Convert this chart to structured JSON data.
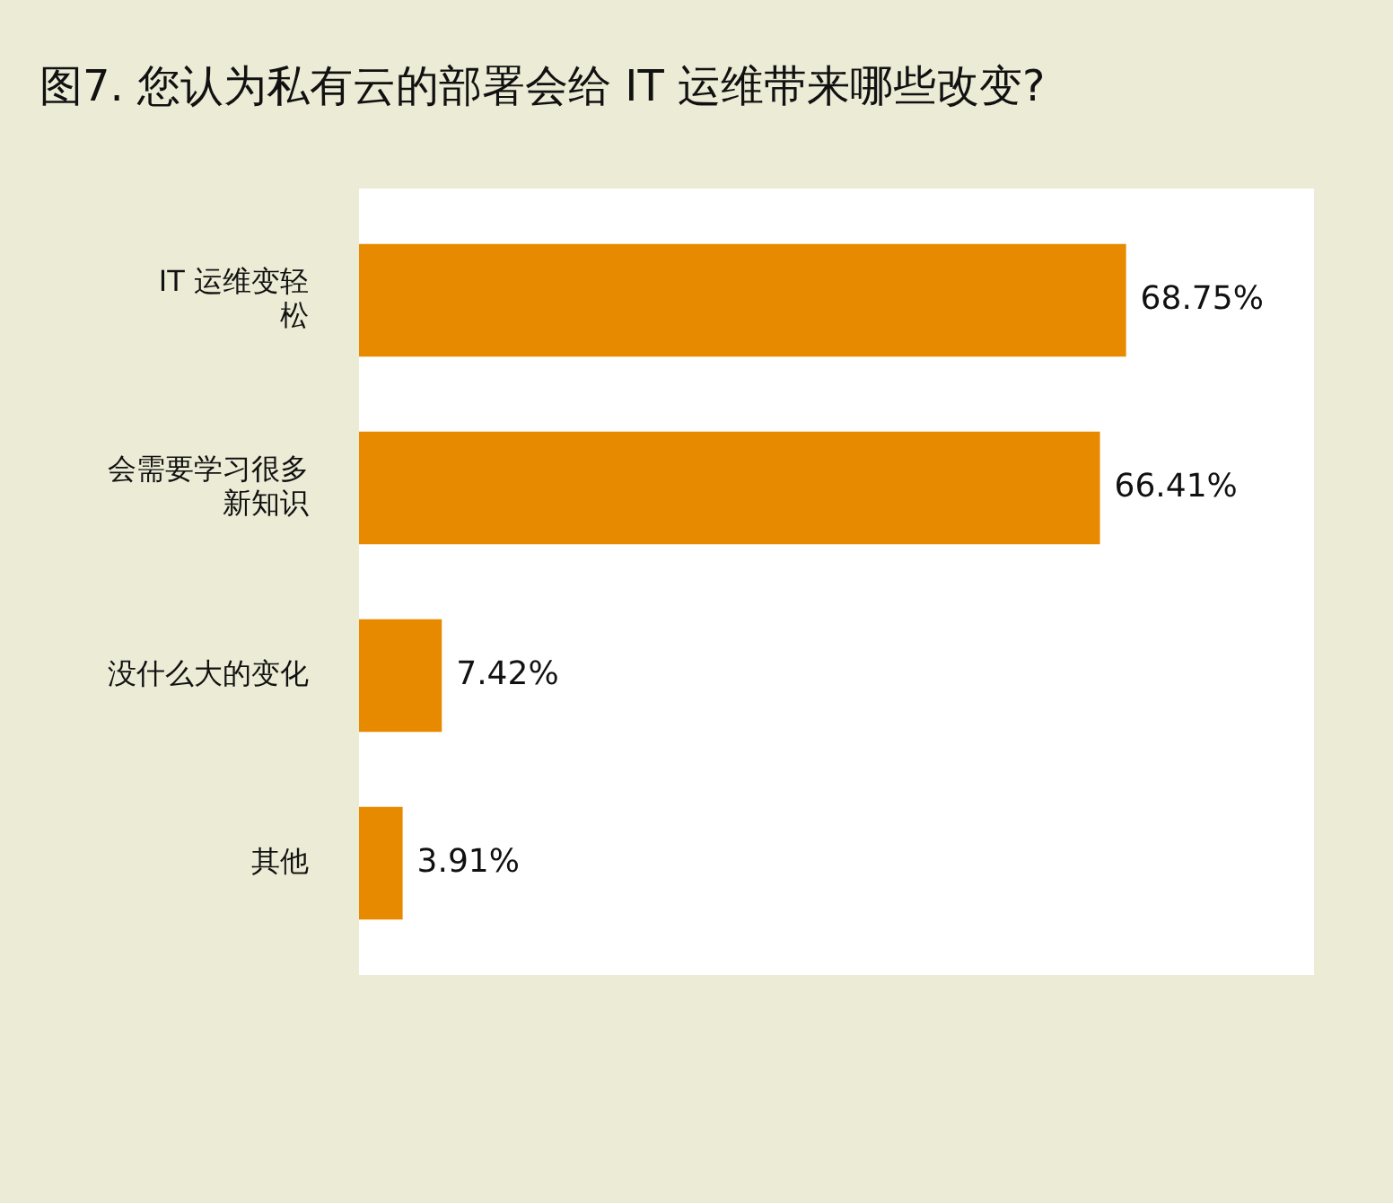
{
  "chart_data": {
    "type": "bar",
    "orientation": "horizontal",
    "title": "图7. 您认为私有云的部署会给 IT 运维带来哪些改变?",
    "categories": [
      "IT 运维变轻松",
      "会需要学习很多新知识",
      "没什么大的变化",
      "其他"
    ],
    "values": [
      68.75,
      66.41,
      7.42,
      3.91
    ],
    "value_labels": [
      "68.75%",
      "66.41%",
      "7.42%",
      "3.91%"
    ],
    "color": "#e88a00"
  }
}
